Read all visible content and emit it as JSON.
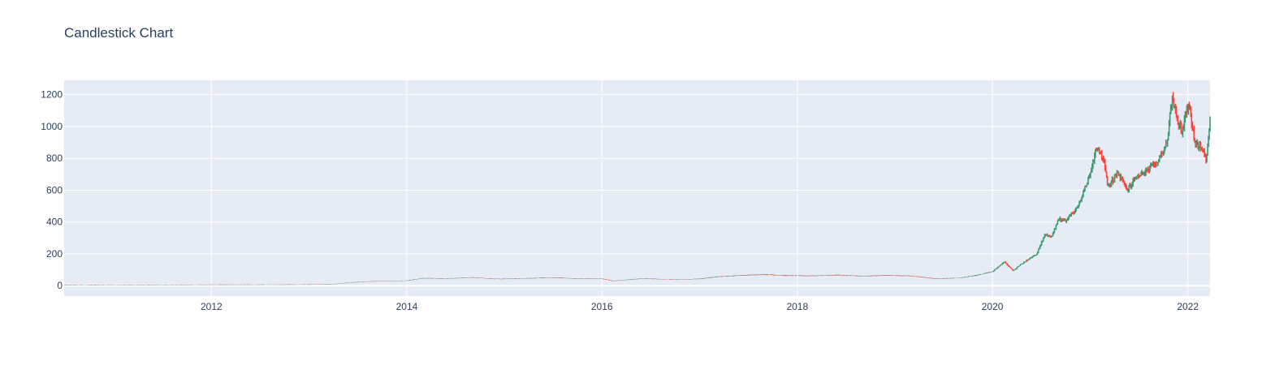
{
  "chart_data": {
    "type": "candlestick",
    "title": "Candlestick Chart",
    "xlabel": "",
    "ylabel": "",
    "x_ticks": [
      "2012",
      "2014",
      "2016",
      "2018",
      "2020",
      "2022"
    ],
    "y_ticks": [
      0,
      200,
      400,
      600,
      800,
      1000,
      1200
    ],
    "xlim": [
      "2010-06-29",
      "2022-03-25"
    ],
    "ylim": [
      -65,
      1290
    ],
    "grid": true,
    "increasing_color": "#3D9970",
    "decreasing_color": "#FF4136",
    "plot_bg": "#E5ECF6",
    "series": [
      {
        "x": [
          "2010-06-29",
          "2011-01-01",
          "2011-06-01",
          "2012-01-01",
          "2012-06-01",
          "2013-01-01",
          "2013-04-01",
          "2013-06-01",
          "2013-09-01",
          "2013-11-01",
          "2014-01-01",
          "2014-03-01",
          "2014-06-01",
          "2014-09-01",
          "2014-12-01",
          "2015-03-01",
          "2015-07-01",
          "2015-10-01",
          "2016-01-01",
          "2016-02-10",
          "2016-06-01",
          "2016-10-01",
          "2017-01-01",
          "2017-03-01",
          "2017-06-01",
          "2017-09-01",
          "2017-12-01",
          "2018-03-01",
          "2018-06-01",
          "2018-09-01",
          "2018-12-01",
          "2019-03-01",
          "2019-06-01",
          "2019-09-01",
          "2019-11-01",
          "2020-01-01",
          "2020-02-15",
          "2020-03-18",
          "2020-05-01",
          "2020-06-15",
          "2020-07-15",
          "2020-08-10",
          "2020-09-05",
          "2020-10-01",
          "2020-11-15",
          "2020-12-31",
          "2021-01-26",
          "2021-02-20",
          "2021-03-08",
          "2021-04-14",
          "2021-05-20",
          "2021-06-25",
          "2021-08-01",
          "2021-09-10",
          "2021-10-15",
          "2021-11-05",
          "2021-11-20",
          "2021-12-10",
          "2022-01-04",
          "2022-01-27",
          "2022-02-24",
          "2022-03-10",
          "2022-03-25"
        ],
        "close": [
          4,
          5,
          5,
          6,
          6,
          7,
          9,
          20,
          28,
          30,
          32,
          47,
          45,
          52,
          42,
          45,
          51,
          44,
          44,
          30,
          45,
          38,
          43,
          55,
          64,
          70,
          63,
          62,
          67,
          60,
          65,
          62,
          44,
          49,
          65,
          88,
          150,
          95,
          150,
          200,
          320,
          310,
          420,
          410,
          490,
          700,
          880,
          790,
          620,
          710,
          600,
          690,
          720,
          780,
          900,
          1200,
          1050,
          970,
          1150,
          900,
          850,
          800,
          1030
        ]
      }
    ]
  }
}
